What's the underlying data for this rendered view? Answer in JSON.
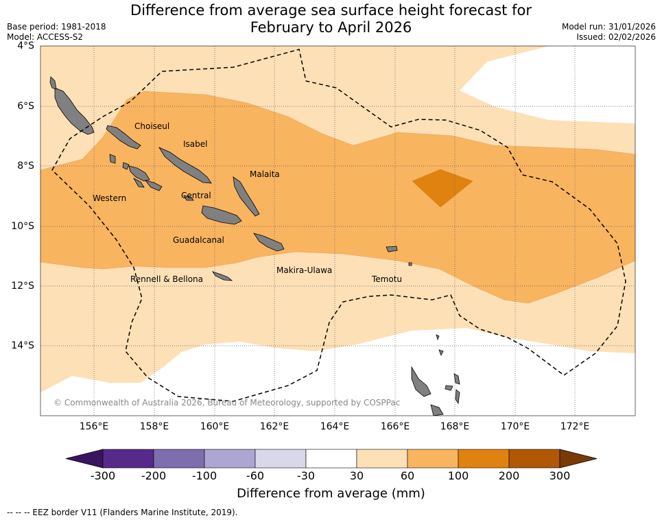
{
  "title_line1": "Difference from average sea surface height forecast for",
  "title_line2": "February to April 2026",
  "base_period": "Base period: 1981-2018",
  "model": "Model: ACCESS-S2",
  "model_run": "Model run: 31/01/2026",
  "issued": "Issued: 02/02/2026",
  "lat_labels": [
    "4°S",
    "6°S",
    "8°S",
    "10°S",
    "12°S",
    "14°S"
  ],
  "lon_labels": [
    "156°E",
    "158°E",
    "160°E",
    "162°E",
    "164°E",
    "166°E",
    "168°E",
    "170°E",
    "172°E"
  ],
  "places": {
    "choiseul": "Choiseul",
    "isabel": "Isabel",
    "malaita": "Malaita",
    "western": "Western",
    "central": "Central",
    "guadalcanal": "Guadalcanal",
    "makira": "Makira-Ulawa",
    "rennell": "Rennell & Bellona",
    "temotu": "Temotu"
  },
  "copyright": "© Commonwealth of Australia 2026, Bureau of Meteorology, supported by COSPPac",
  "colorbar": {
    "ticks": [
      "-300",
      "-200",
      "-100",
      "-60",
      "-30",
      "30",
      "60",
      "100",
      "200",
      "300"
    ],
    "colors": [
      "#3b1460",
      "#572a8a",
      "#7e6eae",
      "#ada6d2",
      "#d9d8eb",
      "#ffffff",
      "#fde0b6",
      "#f9b460",
      "#e0820f",
      "#b05806",
      "#7a3a06"
    ],
    "title": "Difference from average (mm)"
  },
  "footnote": "--  --  -- EEZ border V11 (Flanders Marine Institute, 2019)."
}
